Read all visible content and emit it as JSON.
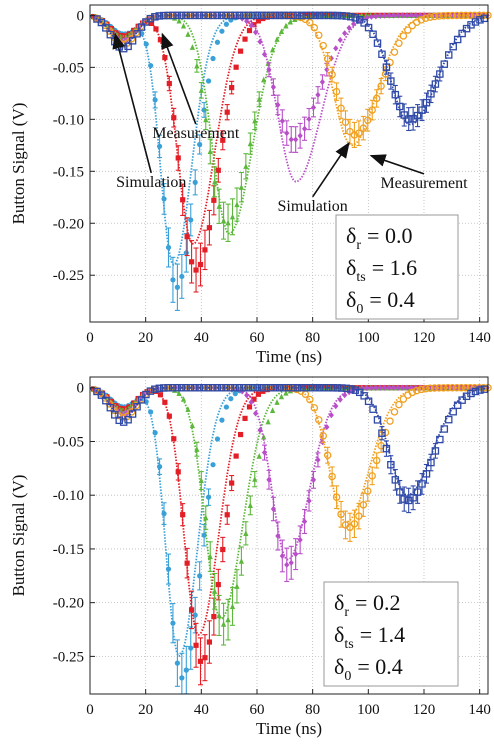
{
  "chart_data": [
    {
      "type": "line",
      "panel": "top",
      "xlabel": "Time (ns)",
      "ylabel": "Button Signal (V)",
      "xlim": [
        0,
        143
      ],
      "ylim": [
        -0.295,
        0.01
      ],
      "xticks": [
        "0",
        "20",
        "40",
        "60",
        "80",
        "100",
        "120",
        "140"
      ],
      "xtick_values": [
        0,
        20,
        40,
        60,
        80,
        100,
        120,
        140
      ],
      "yticks": [
        "0",
        "-0.05",
        "-0.10",
        "-0.15",
        "-0.20",
        "-0.25"
      ],
      "ytick_values": [
        0,
        -0.05,
        -0.1,
        -0.15,
        -0.2,
        -0.25
      ],
      "grid": true,
      "params": {
        "r_sym": "δ",
        "r_sub": "r",
        "r_val": "= 0.0",
        "ts_sym": "δ",
        "ts_sub": "ts",
        "ts_val": "= 1.6",
        "z_sym": "δ",
        "z_sub": "0",
        "z_val": "= 0.4"
      },
      "annotations": [
        {
          "text": "Measurement",
          "x": 38,
          "y": -0.118,
          "arrow_to": [
            26,
            -0.018
          ],
          "anchor": "middle"
        },
        {
          "text": "Simulation",
          "x": 22,
          "y": -0.165,
          "arrow_to": [
            9,
            -0.018
          ],
          "anchor": "middle"
        },
        {
          "text": "Simulation",
          "x": 80,
          "y": -0.188,
          "arrow_to": [
            93,
            -0.123
          ],
          "anchor": "middle"
        },
        {
          "text": "Measurement",
          "x": 120,
          "y": -0.166,
          "arrow_to": [
            101,
            -0.135
          ],
          "anchor": "middle"
        }
      ],
      "series": [
        {
          "color": "#3aa0d8",
          "marker": "circle",
          "peak_t": 31,
          "peak_v": -0.262,
          "width": 5.5,
          "sim_peak_t": 30,
          "sim_peak_v": -0.24
        },
        {
          "color": "#e41e26",
          "marker": "square",
          "peak_t": 38,
          "peak_v": -0.245,
          "width": 6.5,
          "sim_peak_t": 37,
          "sim_peak_v": -0.22
        },
        {
          "color": "#5cb83a",
          "marker": "triangle",
          "peak_t": 49,
          "peak_v": -0.2,
          "width": 7.0,
          "sim_peak_t": 50,
          "sim_peak_v": -0.21
        },
        {
          "color": "#b84fc8",
          "marker": "diamond",
          "peak_t": 73,
          "peak_v": -0.12,
          "width": 7.5,
          "sim_peak_t": 74,
          "sim_peak_v": -0.16
        },
        {
          "color": "#f0a020",
          "marker": "circle-open",
          "peak_t": 95,
          "peak_v": -0.115,
          "width": 7.5,
          "sim_peak_t": 94,
          "sim_peak_v": -0.125
        },
        {
          "color": "#2f49a8",
          "marker": "square-open",
          "peak_t": 115,
          "peak_v": -0.1,
          "width": 8.0,
          "sim_peak_t": 115,
          "sim_peak_v": -0.105
        }
      ]
    },
    {
      "type": "line",
      "panel": "bottom",
      "xlabel": "Time (ns)",
      "ylabel": "Button Signal (V)",
      "xlim": [
        0,
        143
      ],
      "ylim": [
        -0.285,
        0.01
      ],
      "xticks": [
        "0",
        "20",
        "40",
        "60",
        "80",
        "100",
        "120",
        "140"
      ],
      "xtick_values": [
        0,
        20,
        40,
        60,
        80,
        100,
        120,
        140
      ],
      "yticks": [
        "0",
        "-0.05",
        "-0.10",
        "-0.15",
        "-0.20",
        "-0.25"
      ],
      "ytick_values": [
        0,
        -0.05,
        -0.1,
        -0.15,
        -0.2,
        -0.25
      ],
      "grid": true,
      "params": {
        "r_sym": "δ",
        "r_sub": "r",
        "r_val": "=  0.2",
        "ts_sym": "δ",
        "ts_sub": "ts",
        "ts_val": "= 1.4",
        "z_sym": "δ",
        "z_sub": "0",
        "z_val": "= 0.4"
      },
      "annotations": [],
      "series": [
        {
          "color": "#3aa0d8",
          "marker": "circle",
          "peak_t": 33,
          "peak_v": -0.27,
          "width": 5.5,
          "sim_peak_t": 32,
          "sim_peak_v": -0.25
        },
        {
          "color": "#e41e26",
          "marker": "square",
          "peak_t": 40,
          "peak_v": -0.255,
          "width": 6.0,
          "sim_peak_t": 39,
          "sim_peak_v": -0.23
        },
        {
          "color": "#5cb83a",
          "marker": "triangle",
          "peak_t": 48,
          "peak_v": -0.22,
          "width": 6.5,
          "sim_peak_t": 47,
          "sim_peak_v": -0.215
        },
        {
          "color": "#b84fc8",
          "marker": "diamond",
          "peak_t": 71,
          "peak_v": -0.165,
          "width": 6.5,
          "sim_peak_t": 71,
          "sim_peak_v": -0.16
        },
        {
          "color": "#f0a020",
          "marker": "circle-open",
          "peak_t": 93,
          "peak_v": -0.13,
          "width": 7.0,
          "sim_peak_t": 92,
          "sim_peak_v": -0.125
        },
        {
          "color": "#2f49a8",
          "marker": "square-open",
          "peak_t": 114,
          "peak_v": -0.105,
          "width": 7.5,
          "sim_peak_t": 114,
          "sim_peak_v": -0.1
        }
      ]
    }
  ]
}
